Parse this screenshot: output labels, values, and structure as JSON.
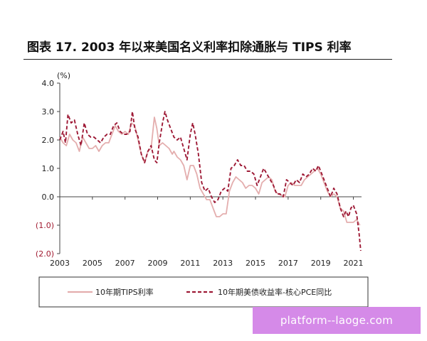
{
  "title": "图表 17. 2003 年以来美国名义利率扣除通胀与 TIPS 利率",
  "watermark": "platform--laoge.com",
  "chart_data": {
    "type": "line",
    "title": "图表 17. 2003 年以来美国名义利率扣除通胀与 TIPS 利率",
    "ylabel": "(%)",
    "xlabel": "",
    "ylim": [
      -2.0,
      4.0
    ],
    "xlim": [
      2003,
      2021.5
    ],
    "yticks": [
      {
        "value": 4.0,
        "label": "4.0"
      },
      {
        "value": 3.0,
        "label": "3.0"
      },
      {
        "value": 2.0,
        "label": "2.0"
      },
      {
        "value": 1.0,
        "label": "1.0"
      },
      {
        "value": 0.0,
        "label": "0.0"
      },
      {
        "value": -1.0,
        "label": "(1.0)"
      },
      {
        "value": -2.0,
        "label": "(2.0)"
      }
    ],
    "xticks": [
      {
        "value": 2003,
        "label": "2003"
      },
      {
        "value": 2005,
        "label": "2005"
      },
      {
        "value": 2007,
        "label": "2007"
      },
      {
        "value": 2009,
        "label": "2009"
      },
      {
        "value": 2011,
        "label": "2011"
      },
      {
        "value": 2013,
        "label": "2013"
      },
      {
        "value": 2015,
        "label": "2015"
      },
      {
        "value": 2017,
        "label": "2017"
      },
      {
        "value": 2019,
        "label": "2019"
      },
      {
        "value": 2021,
        "label": "2021"
      }
    ],
    "grid": false,
    "legend": "bottom",
    "series": [
      {
        "name": "10年期TIPS利率",
        "color": "#e4aeae",
        "style": "solid",
        "points": [
          [
            2003.0,
            2.1
          ],
          [
            2003.2,
            1.9
          ],
          [
            2003.4,
            1.8
          ],
          [
            2003.6,
            2.2
          ],
          [
            2003.8,
            2.0
          ],
          [
            2004.0,
            1.9
          ],
          [
            2004.2,
            1.6
          ],
          [
            2004.4,
            2.1
          ],
          [
            2004.6,
            1.9
          ],
          [
            2004.8,
            1.7
          ],
          [
            2005.0,
            1.7
          ],
          [
            2005.2,
            1.8
          ],
          [
            2005.4,
            1.6
          ],
          [
            2005.6,
            1.8
          ],
          [
            2005.8,
            1.9
          ],
          [
            2006.0,
            1.9
          ],
          [
            2006.2,
            2.2
          ],
          [
            2006.4,
            2.5
          ],
          [
            2006.6,
            2.3
          ],
          [
            2006.8,
            2.2
          ],
          [
            2007.0,
            2.3
          ],
          [
            2007.2,
            2.2
          ],
          [
            2007.4,
            2.6
          ],
          [
            2007.6,
            2.5
          ],
          [
            2007.8,
            2.0
          ],
          [
            2008.0,
            1.5
          ],
          [
            2008.2,
            1.2
          ],
          [
            2008.4,
            1.6
          ],
          [
            2008.6,
            1.7
          ],
          [
            2008.8,
            2.8
          ],
          [
            2008.95,
            2.4
          ],
          [
            2009.1,
            1.8
          ],
          [
            2009.3,
            1.9
          ],
          [
            2009.5,
            1.8
          ],
          [
            2009.7,
            1.7
          ],
          [
            2009.9,
            1.5
          ],
          [
            2010.0,
            1.6
          ],
          [
            2010.2,
            1.4
          ],
          [
            2010.4,
            1.3
          ],
          [
            2010.6,
            1.1
          ],
          [
            2010.8,
            0.6
          ],
          [
            2011.0,
            1.1
          ],
          [
            2011.2,
            1.1
          ],
          [
            2011.4,
            0.8
          ],
          [
            2011.6,
            0.3
          ],
          [
            2011.8,
            0.1
          ],
          [
            2012.0,
            -0.1
          ],
          [
            2012.2,
            -0.1
          ],
          [
            2012.4,
            -0.4
          ],
          [
            2012.6,
            -0.7
          ],
          [
            2012.8,
            -0.7
          ],
          [
            2013.0,
            -0.6
          ],
          [
            2013.2,
            -0.6
          ],
          [
            2013.4,
            0.2
          ],
          [
            2013.6,
            0.5
          ],
          [
            2013.8,
            0.7
          ],
          [
            2014.0,
            0.6
          ],
          [
            2014.2,
            0.5
          ],
          [
            2014.4,
            0.3
          ],
          [
            2014.6,
            0.4
          ],
          [
            2014.8,
            0.4
          ],
          [
            2015.0,
            0.3
          ],
          [
            2015.2,
            0.1
          ],
          [
            2015.4,
            0.5
          ],
          [
            2015.6,
            0.6
          ],
          [
            2015.8,
            0.7
          ],
          [
            2016.0,
            0.6
          ],
          [
            2016.2,
            0.2
          ],
          [
            2016.4,
            0.1
          ],
          [
            2016.6,
            0.05
          ],
          [
            2016.8,
            0.0
          ],
          [
            2017.0,
            0.4
          ],
          [
            2017.2,
            0.5
          ],
          [
            2017.4,
            0.4
          ],
          [
            2017.6,
            0.4
          ],
          [
            2017.8,
            0.4
          ],
          [
            2018.0,
            0.6
          ],
          [
            2018.2,
            0.7
          ],
          [
            2018.4,
            0.8
          ],
          [
            2018.6,
            0.9
          ],
          [
            2018.8,
            1.0
          ],
          [
            2019.0,
            0.8
          ],
          [
            2019.2,
            0.5
          ],
          [
            2019.4,
            0.2
          ],
          [
            2019.6,
            0.0
          ],
          [
            2019.8,
            0.1
          ],
          [
            2020.0,
            0.0
          ],
          [
            2020.2,
            -0.4
          ],
          [
            2020.4,
            -0.5
          ],
          [
            2020.6,
            -0.9
          ],
          [
            2020.8,
            -0.9
          ],
          [
            2021.0,
            -0.9
          ],
          [
            2021.2,
            -0.8
          ],
          [
            2021.4,
            -1.0
          ]
        ]
      },
      {
        "name": "10年期美债收益率-核心PCE同比",
        "color": "#9e1a36",
        "style": "dashed",
        "points": [
          [
            2003.0,
            2.0
          ],
          [
            2003.2,
            2.3
          ],
          [
            2003.35,
            1.9
          ],
          [
            2003.5,
            2.9
          ],
          [
            2003.7,
            2.6
          ],
          [
            2003.9,
            2.7
          ],
          [
            2004.1,
            2.2
          ],
          [
            2004.3,
            1.8
          ],
          [
            2004.5,
            2.6
          ],
          [
            2004.7,
            2.2
          ],
          [
            2004.9,
            2.1
          ],
          [
            2005.1,
            2.1
          ],
          [
            2005.3,
            2.0
          ],
          [
            2005.5,
            1.9
          ],
          [
            2005.7,
            2.1
          ],
          [
            2005.9,
            2.2
          ],
          [
            2006.1,
            2.2
          ],
          [
            2006.3,
            2.5
          ],
          [
            2006.5,
            2.6
          ],
          [
            2006.7,
            2.3
          ],
          [
            2006.9,
            2.2
          ],
          [
            2007.1,
            2.2
          ],
          [
            2007.3,
            2.3
          ],
          [
            2007.45,
            3.0
          ],
          [
            2007.6,
            2.4
          ],
          [
            2007.8,
            2.1
          ],
          [
            2008.0,
            1.5
          ],
          [
            2008.2,
            1.2
          ],
          [
            2008.4,
            1.6
          ],
          [
            2008.6,
            1.8
          ],
          [
            2008.8,
            1.3
          ],
          [
            2008.95,
            1.2
          ],
          [
            2009.1,
            1.9
          ],
          [
            2009.3,
            2.6
          ],
          [
            2009.45,
            3.0
          ],
          [
            2009.6,
            2.7
          ],
          [
            2009.8,
            2.4
          ],
          [
            2010.0,
            2.1
          ],
          [
            2010.2,
            2.0
          ],
          [
            2010.4,
            2.1
          ],
          [
            2010.6,
            1.7
          ],
          [
            2010.8,
            1.3
          ],
          [
            2011.0,
            2.2
          ],
          [
            2011.15,
            2.6
          ],
          [
            2011.3,
            2.2
          ],
          [
            2011.5,
            1.5
          ],
          [
            2011.7,
            0.5
          ],
          [
            2011.9,
            0.2
          ],
          [
            2012.1,
            0.3
          ],
          [
            2012.3,
            0.0
          ],
          [
            2012.5,
            -0.2
          ],
          [
            2012.7,
            -0.1
          ],
          [
            2012.9,
            0.2
          ],
          [
            2013.1,
            0.3
          ],
          [
            2013.3,
            0.2
          ],
          [
            2013.5,
            1.0
          ],
          [
            2013.7,
            1.1
          ],
          [
            2013.9,
            1.3
          ],
          [
            2014.1,
            1.1
          ],
          [
            2014.3,
            1.1
          ],
          [
            2014.5,
            0.9
          ],
          [
            2014.7,
            0.9
          ],
          [
            2014.9,
            0.8
          ],
          [
            2015.1,
            0.4
          ],
          [
            2015.3,
            0.7
          ],
          [
            2015.5,
            1.0
          ],
          [
            2015.7,
            0.8
          ],
          [
            2015.9,
            0.6
          ],
          [
            2016.1,
            0.4
          ],
          [
            2016.3,
            0.1
          ],
          [
            2016.5,
            0.1
          ],
          [
            2016.7,
            0.0
          ],
          [
            2016.9,
            0.6
          ],
          [
            2017.1,
            0.5
          ],
          [
            2017.3,
            0.4
          ],
          [
            2017.5,
            0.6
          ],
          [
            2017.7,
            0.5
          ],
          [
            2017.9,
            0.8
          ],
          [
            2018.1,
            0.7
          ],
          [
            2018.3,
            0.8
          ],
          [
            2018.5,
            1.0
          ],
          [
            2018.7,
            0.9
          ],
          [
            2018.85,
            1.1
          ],
          [
            2019.0,
            0.9
          ],
          [
            2019.2,
            0.6
          ],
          [
            2019.4,
            0.3
          ],
          [
            2019.6,
            0.0
          ],
          [
            2019.8,
            0.3
          ],
          [
            2020.0,
            0.1
          ],
          [
            2020.2,
            -0.4
          ],
          [
            2020.4,
            -0.7
          ],
          [
            2020.55,
            -0.5
          ],
          [
            2020.7,
            -0.7
          ],
          [
            2020.85,
            -0.4
          ],
          [
            2021.0,
            -0.3
          ],
          [
            2021.2,
            -0.6
          ],
          [
            2021.35,
            -1.3
          ],
          [
            2021.45,
            -1.9
          ]
        ]
      }
    ]
  }
}
